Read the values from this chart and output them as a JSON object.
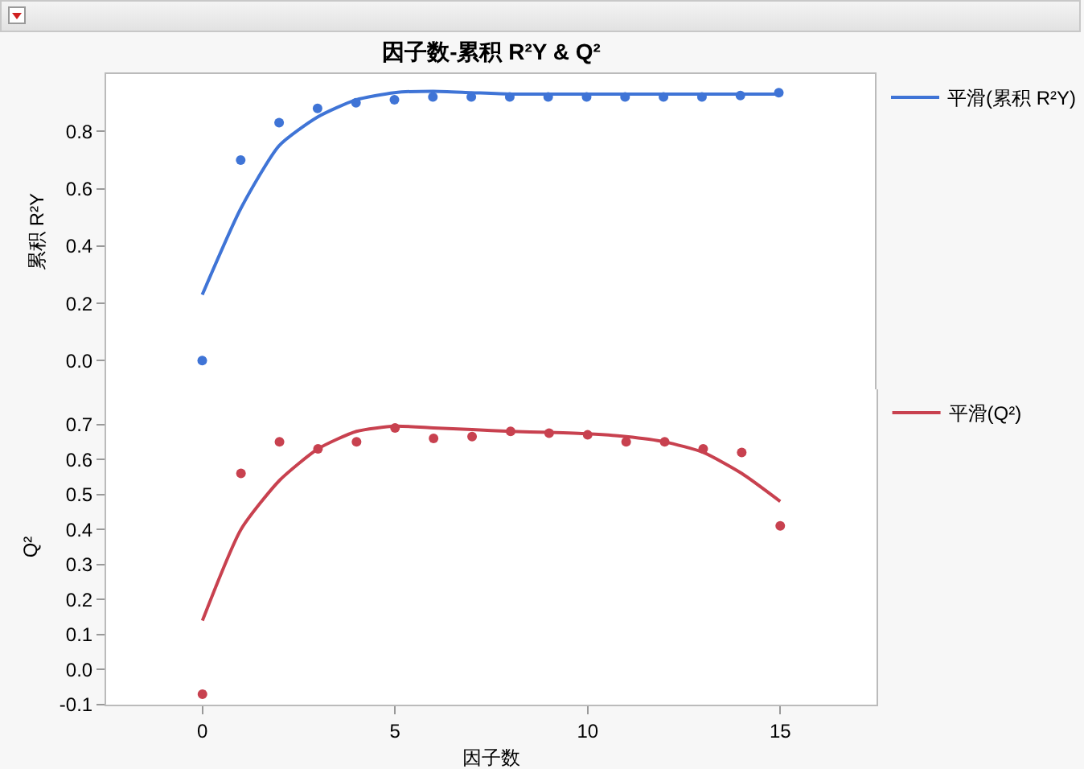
{
  "chart_data": [
    {
      "type": "scatter",
      "title": "因子数-累积 R²Y & Q²",
      "ylabel": "累积 R²Y",
      "x": [
        0,
        1,
        2,
        3,
        4,
        5,
        6,
        7,
        8,
        9,
        10,
        11,
        12,
        13,
        14,
        15
      ],
      "xlim": [
        -2.5,
        17.5
      ],
      "xticks": [
        0,
        5,
        10,
        15
      ],
      "ylim": [
        -0.1,
        1.0
      ],
      "yticks": [
        {
          "value": 0,
          "label": "0.0"
        },
        0.2,
        0.4,
        0.6,
        0.8
      ],
      "tick_labels": "y",
      "line_style": "solid",
      "grid": false,
      "legend": "right",
      "series": [
        {
          "marker": "circle",
          "color": "#3f74d6",
          "values": [
            0.0,
            0.7,
            0.83,
            0.88,
            0.9,
            0.91,
            0.92,
            0.92,
            0.92,
            0.92,
            0.92,
            0.92,
            0.92,
            0.92,
            0.925,
            0.935
          ]
        },
        {
          "type": "line",
          "marker": "none",
          "name": "平滑(累积 R²Y)",
          "color": "#3f74d6",
          "values": [
            0.23,
            0.53,
            0.75,
            0.85,
            0.91,
            0.935,
            0.94,
            0.935,
            0.93,
            0.93,
            0.93,
            0.93,
            0.93,
            0.93,
            0.93,
            0.93
          ]
        }
      ]
    },
    {
      "type": "scatter",
      "xlabel": "因子数",
      "ylabel": "Q²",
      "x": [
        0,
        1,
        2,
        3,
        4,
        5,
        6,
        7,
        8,
        9,
        10,
        11,
        12,
        13,
        14,
        15
      ],
      "xlim": [
        -2.5,
        17.5
      ],
      "xticks": [
        0,
        5,
        10,
        15
      ],
      "ylim": [
        -0.1,
        0.8
      ],
      "yticks": [
        -0.1,
        {
          "value": 0,
          "label": "0.0"
        },
        0.1,
        0.2,
        0.3,
        0.4,
        0.5,
        0.6,
        0.7
      ],
      "line_style": "solid",
      "grid": false,
      "legend": "right",
      "series": [
        {
          "marker": "circle",
          "color": "#c8414f",
          "values": [
            -0.07,
            0.56,
            0.65,
            0.63,
            0.65,
            0.69,
            0.66,
            0.665,
            0.68,
            0.675,
            0.67,
            0.65,
            0.65,
            0.63,
            0.62,
            0.41
          ]
        },
        {
          "type": "line",
          "marker": "none",
          "name": "平滑(Q²)",
          "color": "#c8414f",
          "values": [
            0.14,
            0.4,
            0.54,
            0.63,
            0.68,
            0.695,
            0.69,
            0.685,
            0.68,
            0.677,
            0.673,
            0.665,
            0.65,
            0.62,
            0.56,
            0.48
          ]
        }
      ]
    }
  ]
}
